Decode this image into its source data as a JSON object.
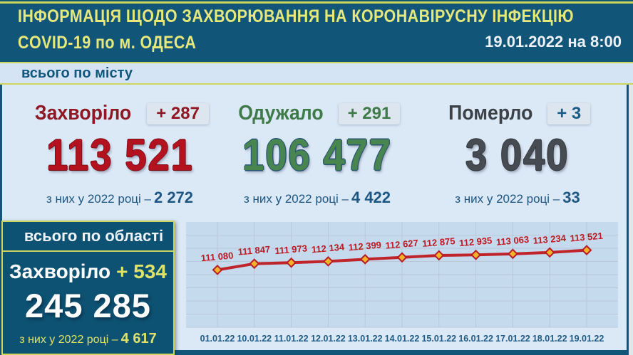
{
  "header": {
    "title_line1": "ІНФОРМАЦІЯ ЩОДО ЗАХВОРЮВАННЯ НА КОРОНАВІРУСНУ ІНФЕКЦІЮ",
    "title_line2": "COVID-19 по м. ОДЕСА",
    "datetime": "19.01.2022 на 8:00"
  },
  "city_section": {
    "band_label": "всього по місту",
    "stats": [
      {
        "label": "Захворіло",
        "delta": "+ 287",
        "value": "113 521",
        "note_label": "з них у 2022 році –",
        "note_value": "2 272",
        "color": "#b5121f"
      },
      {
        "label": "Одужало",
        "delta": "+ 291",
        "value": "106 477",
        "note_label": "з них у 2022 році –",
        "note_value": "4 422",
        "color": "#49854f"
      },
      {
        "label": "Померло",
        "delta": "+ 3",
        "value": "3 040",
        "note_label": "з них у 2022 році –",
        "note_value": "33",
        "color": "#474c52"
      }
    ]
  },
  "oblast_section": {
    "band_label": "всього по області",
    "label": "Захворіло",
    "delta": "+ 534",
    "value": "245 285",
    "note_label": "з них у 2022 році –",
    "note_value": "4 617"
  },
  "chart_data": {
    "type": "line",
    "title": "",
    "x": [
      "01.01.22",
      "10.01.22",
      "11.01.22",
      "12.01.22",
      "13.01.22",
      "14.01.22",
      "15.01.22",
      "16.01.22",
      "17.01.22",
      "18.01.22",
      "19.01.22"
    ],
    "series": [
      {
        "name": "",
        "values": [
          111080,
          111847,
          111973,
          112134,
          112399,
          112627,
          112875,
          112935,
          113063,
          113234,
          113521
        ]
      }
    ],
    "ylim": [
      104000,
      117000
    ],
    "grid": true,
    "legend": "none",
    "line_color": "#c0242b",
    "marker_fill": "#f2b32a",
    "marker_stroke": "#b81c24",
    "label_color": "#bb1a22",
    "xlabel_color": "#1d5b86",
    "plot_bg": "#c6daee",
    "grid_color": "#b9c7d9"
  },
  "colors": {
    "accent_yellow": "#ccd65e",
    "teal_dark": "#0e5273",
    "area_light": "#dbe8f6",
    "title_yellow": "#e6e87c"
  }
}
